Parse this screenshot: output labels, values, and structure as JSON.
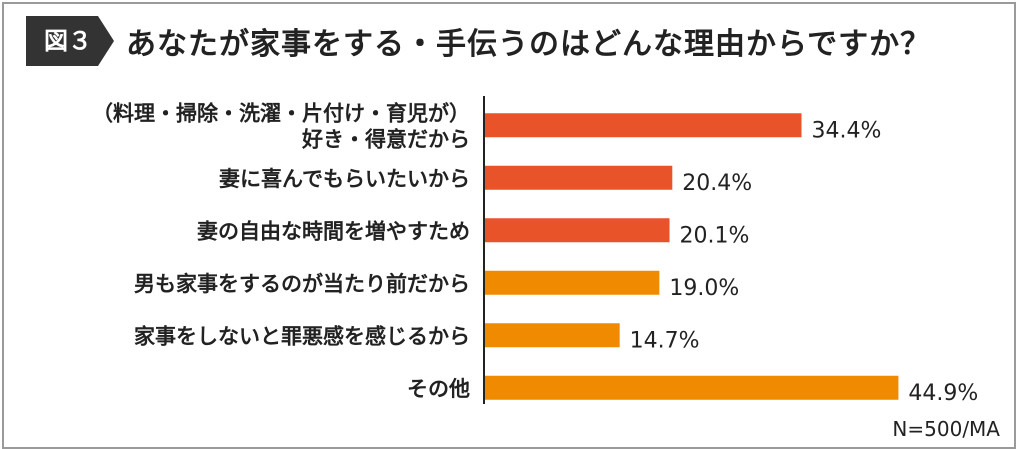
{
  "header": {
    "badge": "図３",
    "title": "あなたが家事をする・手伝うのはどんな理由からですか？"
  },
  "note": "N=500/MA",
  "colors": {
    "bar_top": "#e8532a",
    "bar_bottom": "#f08a00",
    "axis": "#222222",
    "text": "#222222"
  },
  "chart_data": {
    "type": "bar",
    "orientation": "horizontal",
    "categories": [
      [
        "（料理・掃除・洗濯・片付け・育児が）",
        "好き・得意だから"
      ],
      [
        "妻に喜んでもらいたいから"
      ],
      [
        "妻の自由な時間を増やすため"
      ],
      [
        "男も家事をするのが当たり前だから"
      ],
      [
        "家事をしないと罪悪感を感じるから"
      ],
      [
        "その他"
      ]
    ],
    "values": [
      34.4,
      20.4,
      20.1,
      19.0,
      14.7,
      44.9
    ],
    "value_labels": [
      "34.4%",
      "20.4%",
      "20.1%",
      "19.0%",
      "14.7%",
      "44.9%"
    ],
    "bar_colors": [
      "#e8532a",
      "#e8532a",
      "#e8532a",
      "#f08a00",
      "#f08a00",
      "#f08a00"
    ],
    "xlim": [
      0,
      50
    ],
    "grid": false
  }
}
